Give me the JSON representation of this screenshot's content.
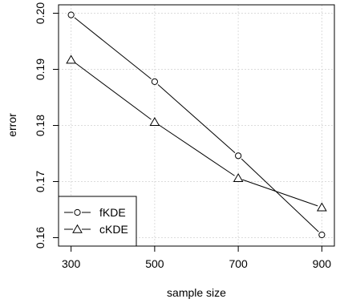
{
  "chart_data": {
    "type": "line",
    "title": "",
    "xlabel": "sample size",
    "ylabel": "error",
    "x": [
      300,
      500,
      700,
      900
    ],
    "xticks": [
      300,
      500,
      700,
      900
    ],
    "yticks": [
      0.16,
      0.17,
      0.18,
      0.19,
      0.2
    ],
    "ytick_labels": [
      "0.16",
      "0.17",
      "0.18",
      "0.19",
      "0.20"
    ],
    "xlim": [
      270,
      930
    ],
    "ylim": [
      0.1585,
      0.2015
    ],
    "grid": true,
    "legend": "bottom-left",
    "series": [
      {
        "name": "fKDE",
        "marker": "circle",
        "values": [
          0.1997,
          0.1878,
          0.1746,
          0.1605
        ]
      },
      {
        "name": "cKDE",
        "marker": "triangle",
        "values": [
          0.1917,
          0.1806,
          0.1706,
          0.1654
        ]
      }
    ]
  }
}
